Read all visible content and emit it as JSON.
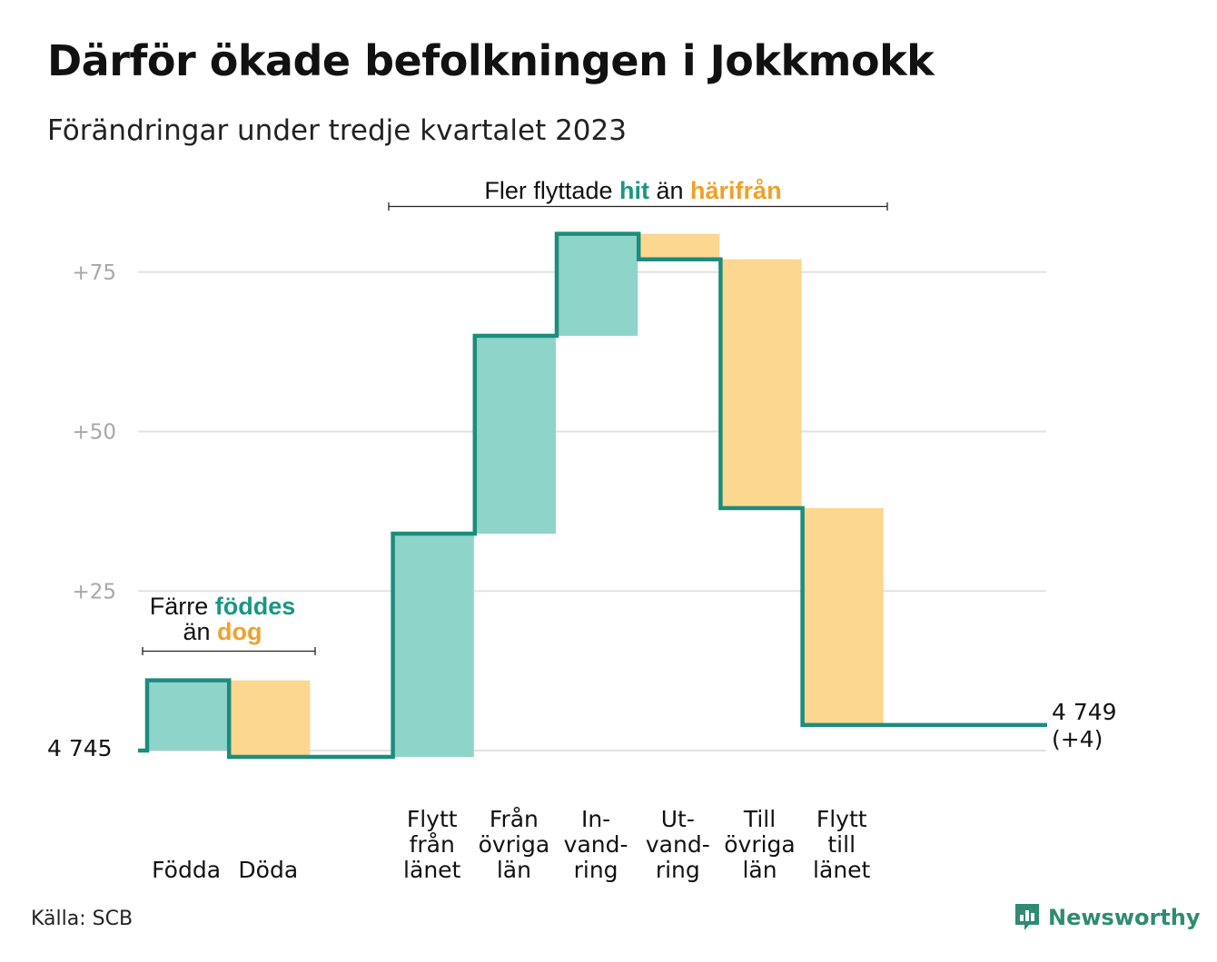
{
  "title": "Därför ökade befolkningen i Jokkmokk",
  "subtitle": "Förändringar under tredje kvartalet 2023",
  "source": "Källa: SCB",
  "brand": "Newsworthy",
  "colors": {
    "increase_fill": "#8fd4c9",
    "decrease_fill": "#fbd78f",
    "line": "#1c8c7d",
    "accent_teal": "#1a9684",
    "accent_orange": "#efa12a",
    "grid": "#e2e2e2",
    "tick_text": "#a8a8a8",
    "brand": "#2f8b73"
  },
  "annotations": {
    "births": {
      "line1_pre": "Färre ",
      "line1_hl": "föddes",
      "line2_pre": "än ",
      "line2_hl": "dog"
    },
    "migration": {
      "pre": "Fler flyttade ",
      "hl1": "hit",
      "mid": " än ",
      "hl2": "härifrån"
    }
  },
  "chart_data": {
    "type": "waterfall",
    "baseline": 4745,
    "baseline_label": "4 745",
    "end_value": 4749,
    "end_label": "4 749",
    "end_change_label": "(+4)",
    "y_ticks": [
      {
        "value": 25,
        "label": "+25"
      },
      {
        "value": 50,
        "label": "+50"
      },
      {
        "value": 75,
        "label": "+75"
      }
    ],
    "ylim": [
      0,
      82
    ],
    "grid": true,
    "steps": [
      {
        "label": [
          "Födda"
        ],
        "from": 0,
        "to": 11,
        "kind": "increase"
      },
      {
        "label": [
          "Döda"
        ],
        "from": 11,
        "to": -1,
        "kind": "decrease"
      },
      {
        "label": [],
        "from": -1,
        "to": -1,
        "kind": "gap"
      },
      {
        "label": [
          "Flytt",
          "från",
          "länet"
        ],
        "from": -1,
        "to": 34,
        "kind": "increase"
      },
      {
        "label": [
          "Från",
          "övriga",
          "län"
        ],
        "from": 34,
        "to": 65,
        "kind": "increase"
      },
      {
        "label": [
          "In-",
          "vand-",
          "ring"
        ],
        "from": 65,
        "to": 81,
        "kind": "increase"
      },
      {
        "label": [
          "Ut-",
          "vand-",
          "ring"
        ],
        "from": 81,
        "to": 77,
        "kind": "decrease"
      },
      {
        "label": [
          "Till",
          "övriga",
          "län"
        ],
        "from": 77,
        "to": 38,
        "kind": "decrease"
      },
      {
        "label": [
          "Flytt",
          "till",
          "länet"
        ],
        "from": 38,
        "to": 4,
        "kind": "decrease"
      }
    ]
  }
}
